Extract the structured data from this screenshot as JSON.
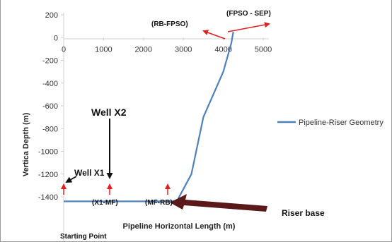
{
  "chart_data": {
    "type": "line",
    "title": "",
    "xlabel": "Pipeline Horizontal Length (m)",
    "ylabel": "Vertica Depth (m)",
    "xlim": [
      0,
      5000
    ],
    "ylim": [
      -1500,
      200
    ],
    "xticks": [
      "0",
      "1000",
      "2000",
      "3000",
      "4000",
      "5000"
    ],
    "yticks": [
      "200",
      "0",
      "-200",
      "-400",
      "-600",
      "-800",
      "-1000",
      "-1200",
      "-1400"
    ],
    "grid": false,
    "legend_position": "right",
    "series": [
      {
        "name": "Pipeline-Riser Geometry",
        "color": "#4f81bd",
        "points": [
          [
            0,
            -1440
          ],
          [
            1200,
            -1440
          ],
          [
            2700,
            -1440
          ],
          [
            2850,
            -1430
          ],
          [
            3200,
            -1200
          ],
          [
            3500,
            -700
          ],
          [
            4000,
            -300
          ],
          [
            4200,
            -50
          ],
          [
            4250,
            50
          ]
        ]
      }
    ],
    "annotations": {
      "well_x1": "Well X1",
      "well_x2": "Well X2",
      "x1_mf": "(X1-MF)",
      "mf_rb": "(MF-RB)",
      "starting_point": "Starting Point",
      "riser_base": "Riser base",
      "rb_fpso": "(RB-FPSO)",
      "fpso_sep": "(FPSO - SEP)"
    }
  },
  "colors": {
    "axis": "#d9d9d9",
    "series": "#4f81bd",
    "marker_arrows": "#e02020",
    "big_arrow": "#5a1a1a",
    "callout_arrows": "#111111"
  }
}
